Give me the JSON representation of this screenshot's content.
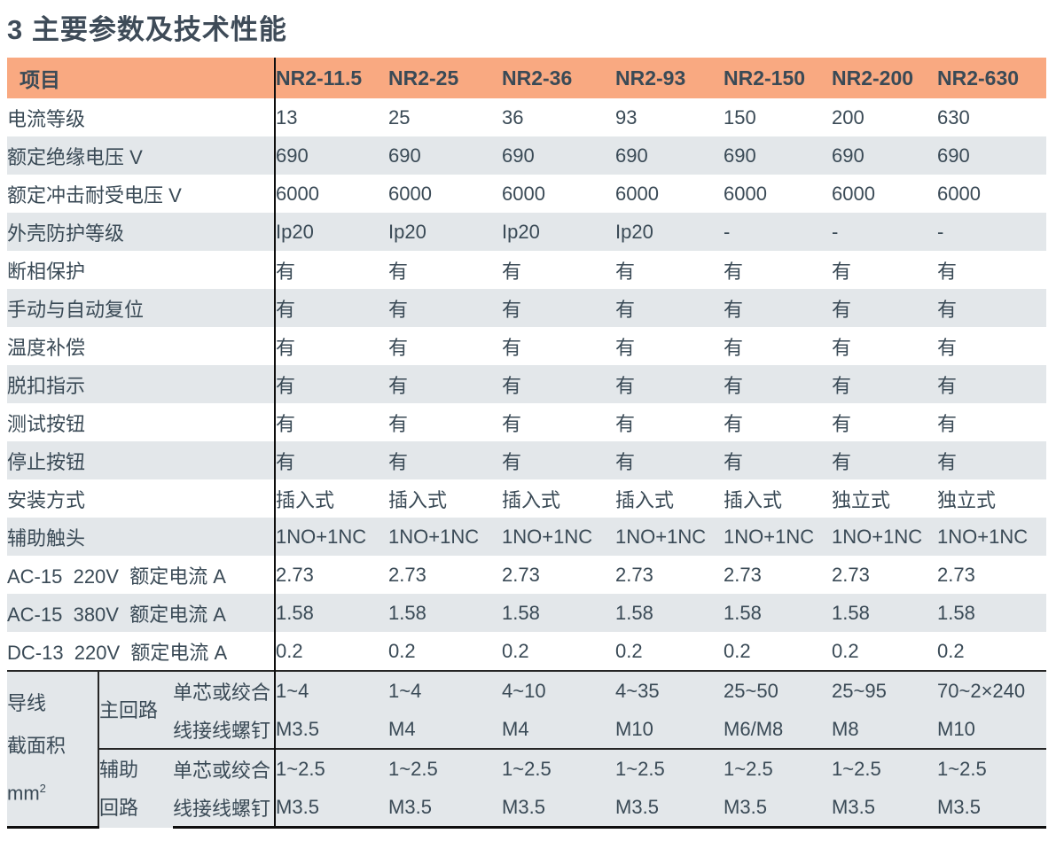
{
  "page_title": "3 主要参数及技术性能",
  "colors": {
    "header_bg": "#F9A981",
    "row_alt_bg": "#E3E7EA",
    "text_color": "#3A4A56",
    "title_color": "#3E4B58",
    "line_dark": "#0E0E0E",
    "line_mid": "#262626"
  },
  "table": {
    "header": [
      "项目",
      "NR2-11.5",
      "NR2-25",
      "NR2-36",
      "NR2-93",
      "NR2-150",
      "NR2-200",
      "NR2-630"
    ],
    "rows": [
      {
        "label": "电流等级",
        "values": [
          "13",
          "25",
          "36",
          "93",
          "150",
          "200",
          "630"
        ]
      },
      {
        "label": "额定绝缘电压 V",
        "values": [
          "690",
          "690",
          "690",
          "690",
          "690",
          "690",
          "690"
        ]
      },
      {
        "label": "额定冲击耐受电压 V",
        "values": [
          "6000",
          "6000",
          "6000",
          "6000",
          "6000",
          "6000",
          "6000"
        ]
      },
      {
        "label": "外壳防护等级",
        "values": [
          "Ip20",
          "Ip20",
          "Ip20",
          "Ip20",
          "-",
          "-",
          "-"
        ]
      },
      {
        "label": "断相保护",
        "values": [
          "有",
          "有",
          "有",
          "有",
          "有",
          "有",
          "有"
        ]
      },
      {
        "label": "手动与自动复位",
        "values": [
          "有",
          "有",
          "有",
          "有",
          "有",
          "有",
          "有"
        ]
      },
      {
        "label": "温度补偿",
        "values": [
          "有",
          "有",
          "有",
          "有",
          "有",
          "有",
          "有"
        ]
      },
      {
        "label": "脱扣指示",
        "values": [
          "有",
          "有",
          "有",
          "有",
          "有",
          "有",
          "有"
        ]
      },
      {
        "label": "测试按钮",
        "values": [
          "有",
          "有",
          "有",
          "有",
          "有",
          "有",
          "有"
        ]
      },
      {
        "label": "停止按钮",
        "values": [
          "有",
          "有",
          "有",
          "有",
          "有",
          "有",
          "有"
        ]
      },
      {
        "label": "安装方式",
        "values": [
          "插入式",
          "插入式",
          "插入式",
          "插入式",
          "插入式",
          "独立式",
          "独立式"
        ]
      },
      {
        "label": "辅助触头",
        "values": [
          "1NO+1NC",
          "1NO+1NC",
          "1NO+1NC",
          "1NO+1NC",
          "1NO+1NC",
          "1NO+1NC",
          "1NO+1NC"
        ]
      },
      {
        "label": "AC-15  220V  额定电流 A",
        "values": [
          "2.73",
          "2.73",
          "2.73",
          "2.73",
          "2.73",
          "2.73",
          "2.73"
        ]
      },
      {
        "label": "AC-15  380V  额定电流 A",
        "values": [
          "1.58",
          "1.58",
          "1.58",
          "1.58",
          "1.58",
          "1.58",
          "1.58"
        ]
      },
      {
        "label": "DC-13  220V  额定电流 A",
        "values": [
          "0.2",
          "0.2",
          "0.2",
          "0.2",
          "0.2",
          "0.2",
          "0.2"
        ]
      }
    ],
    "wire_section": {
      "group_label_lines": [
        "导线",
        "截面积",
        "mm"
      ],
      "group_label_sup": "2",
      "subgroups": [
        {
          "label": "主回路",
          "label_lines": [
            "主回路"
          ],
          "rows": [
            {
              "type": "单芯或绞合",
              "values": [
                "1~4",
                "1~4",
                "4~10",
                "4~35",
                "25~50",
                "25~95",
                "70~2×240"
              ]
            },
            {
              "type": "线接线螺钉",
              "values": [
                "M3.5",
                "M4",
                "M4",
                "M10",
                "M6/M8",
                "M8",
                "M10"
              ]
            }
          ]
        },
        {
          "label": "辅助回路",
          "label_lines": [
            "辅助",
            "回路"
          ],
          "rows": [
            {
              "type": "单芯或绞合",
              "values": [
                "1~2.5",
                "1~2.5",
                "1~2.5",
                "1~2.5",
                "1~2.5",
                "1~2.5",
                "1~2.5"
              ]
            },
            {
              "type": "线接线螺钉",
              "values": [
                "M3.5",
                "M3.5",
                "M3.5",
                "M3.5",
                "M3.5",
                "M3.5",
                "M3.5"
              ]
            }
          ]
        }
      ]
    }
  }
}
